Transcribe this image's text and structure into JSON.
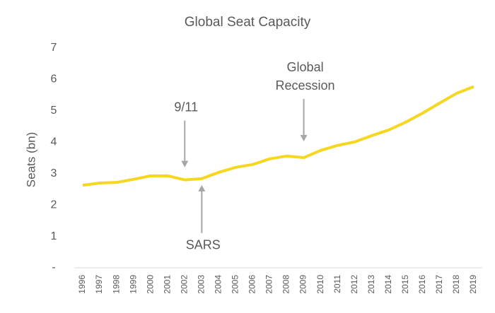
{
  "chart_data": {
    "type": "line",
    "title": "Global Seat Capacity",
    "y_label": "Seats (bn)",
    "categories": [
      "1996",
      "1997",
      "1998",
      "1999",
      "2000",
      "2001",
      "2002",
      "2003",
      "2004",
      "2005",
      "2006",
      "2007",
      "2008",
      "2009",
      "2010",
      "2011",
      "2012",
      "2013",
      "2014",
      "2015",
      "2016",
      "2017",
      "2018",
      "2019"
    ],
    "series": [
      {
        "name": "Global Seat Capacity",
        "color": "#f5d620",
        "values": [
          2.63,
          2.7,
          2.72,
          2.82,
          2.93,
          2.93,
          2.8,
          2.84,
          3.04,
          3.2,
          3.29,
          3.47,
          3.56,
          3.51,
          3.74,
          3.9,
          4.01,
          4.21,
          4.39,
          4.64,
          4.93,
          5.25,
          5.56,
          5.77
        ]
      }
    ],
    "ylim": [
      0,
      7
    ],
    "yticks": [
      {
        "value": 0,
        "label": "-"
      },
      1,
      2,
      3,
      4,
      5,
      6,
      7
    ],
    "grid": false,
    "annotations": [
      {
        "lines": [
          "9/11"
        ],
        "at": "2002"
      },
      {
        "lines": [
          "SARS"
        ],
        "at": "2003"
      },
      {
        "lines": [
          "Global",
          "Recession"
        ],
        "at": "2009"
      }
    ]
  }
}
